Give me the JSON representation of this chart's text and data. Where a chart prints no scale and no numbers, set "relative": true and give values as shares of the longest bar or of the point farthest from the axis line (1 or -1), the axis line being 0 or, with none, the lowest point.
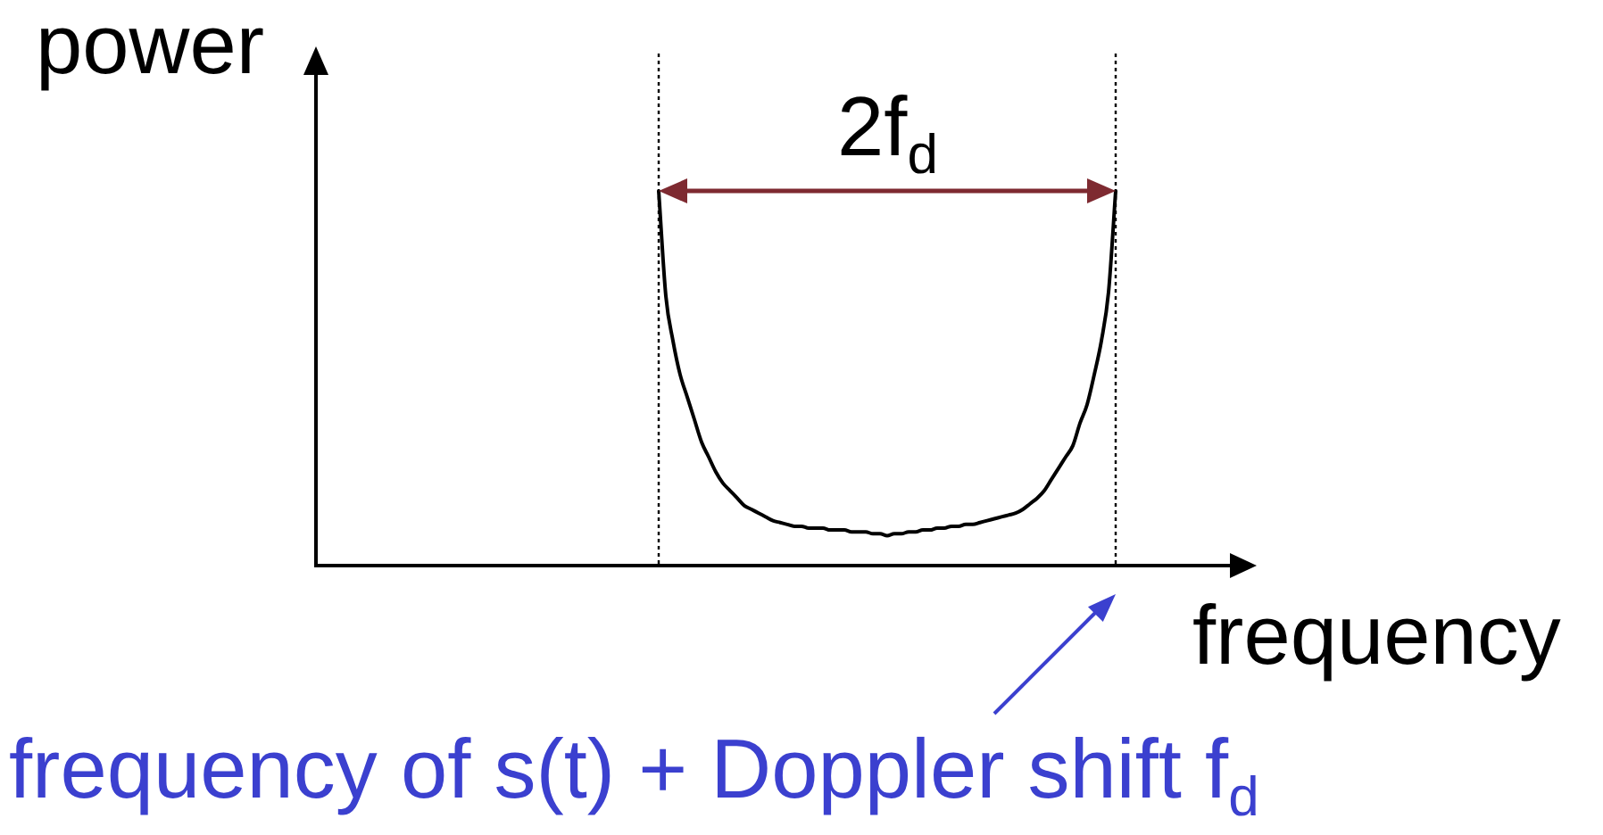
{
  "chart_data": {
    "type": "line",
    "xlabel": "frequency",
    "ylabel": "power",
    "annotations": [
      "2f$_{d}$",
      "frequency of s(t) + Doppler shift f$_{d}$"
    ],
    "categories": [
      null,
      null,
      null,
      null,
      null,
      null,
      null,
      null,
      null,
      null,
      null,
      null,
      null,
      null,
      null,
      null,
      null,
      null,
      null,
      null,
      null,
      null,
      null,
      null,
      null,
      null,
      null,
      null,
      null,
      null,
      null,
      null,
      null,
      null,
      null,
      null,
      null,
      null,
      null,
      null,
      null,
      null,
      null,
      null,
      null,
      null,
      null,
      null,
      null,
      null,
      null,
      null,
      null,
      null,
      null,
      null,
      null,
      null,
      null,
      null,
      null,
      null,
      null,
      null,
      null,
      null,
      null,
      null,
      null,
      null,
      null,
      null,
      null,
      null,
      null,
      null,
      null,
      null,
      null,
      null,
      null,
      null,
      null,
      null,
      null,
      null,
      null,
      null,
      null,
      null,
      null,
      null,
      null,
      null,
      null,
      null,
      null,
      null,
      null,
      null,
      null,
      null,
      null,
      null,
      null,
      null,
      null,
      null,
      null,
      null,
      null,
      null,
      null,
      null,
      null,
      null,
      null,
      null,
      null,
      null,
      null,
      null,
      null,
      null,
      null,
      null,
      null,
      null,
      null
    ],
    "values": [
      null,
      null,
      null,
      null,
      null,
      null,
      null,
      null,
      null,
      null,
      null,
      null,
      null,
      null,
      null,
      null,
      null,
      null,
      null,
      null,
      null,
      null,
      null,
      null,
      null,
      null,
      null,
      null,
      null,
      null,
      null,
      null,
      null,
      null,
      null,
      null,
      null,
      null,
      null,
      null,
      null,
      null,
      null,
      null,
      null,
      null,
      null,
      null,
      1,
      0.72,
      0.6,
      0.51,
      0.45,
      0.39,
      0.33,
      0.29,
      0.25,
      0.22,
      0.2,
      0.18,
      0.16,
      0.15,
      0.14,
      0.13,
      0.12,
      0.115,
      0.11,
      0.105,
      0.105,
      0.1,
      0.1,
      0.1,
      0.095,
      0.095,
      0.095,
      0.09,
      0.09,
      0.09,
      0.085,
      0.085,
      0.08,
      0.085,
      0.085,
      0.09,
      0.09,
      0.095,
      0.095,
      0.1,
      0.1,
      0.105,
      0.105,
      0.11,
      0.11,
      0.115,
      0.12,
      0.125,
      0.13,
      0.135,
      0.14,
      0.15,
      0.165,
      0.18,
      0.2,
      0.23,
      0.26,
      0.29,
      0.32,
      0.38,
      0.43,
      0.51,
      0.6,
      0.73,
      1,
      null,
      null,
      null,
      null,
      null,
      null,
      null,
      null,
      null,
      null,
      null,
      null,
      null,
      null,
      null,
      null
    ],
    "color": "#000000",
    "relative": true,
    "grid": false,
    "legend": false
  }
}
